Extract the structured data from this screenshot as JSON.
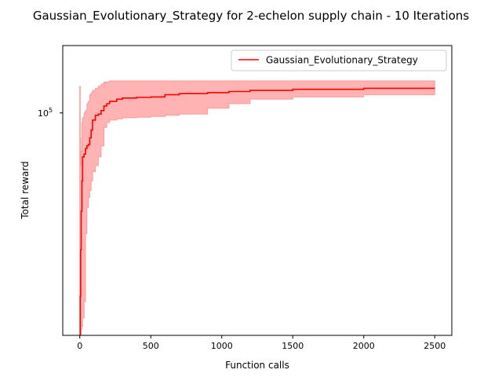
{
  "chart_data": {
    "type": "line",
    "title": "Gaussian_Evolutionary_Strategy for 2-echelon supply chain - 10 Iterations",
    "xlabel": "Function calls",
    "ylabel": "Total reward",
    "xscale": "linear",
    "yscale": "log",
    "xlim": [
      -120,
      2620
    ],
    "ylim": [
      39000,
      133000
    ],
    "x_ticks": [
      0,
      500,
      1000,
      1500,
      2000,
      2500
    ],
    "x_tick_labels": [
      "0",
      "500",
      "1000",
      "1500",
      "2000",
      "2500"
    ],
    "y_ticks": [
      100000
    ],
    "y_tick_labels": [
      "10",
      "5"
    ],
    "grid": false,
    "legend_position": "top-right",
    "colors": {
      "line": "#ff0000",
      "band_fill": "#ffb3b3",
      "band_edge": "#ff9a9a"
    },
    "series": [
      {
        "name": "Gaussian_Evolutionary_Strategy",
        "style": "step",
        "x": [
          0,
          3,
          6,
          10,
          15,
          20,
          30,
          40,
          50,
          60,
          70,
          80,
          90,
          110,
          130,
          150,
          170,
          190,
          210,
          260,
          300,
          400,
          500,
          600,
          700,
          900,
          1050,
          1200,
          1500,
          2000,
          2500
        ],
        "y": [
          39000,
          46000,
          56000,
          66000,
          75000,
          83000,
          84000,
          86000,
          87000,
          87500,
          90000,
          93000,
          97000,
          99000,
          99500,
          101000,
          103000,
          104000,
          105000,
          106000,
          106500,
          106800,
          107000,
          108000,
          108500,
          109000,
          109500,
          110000,
          110500,
          111000,
          111000
        ]
      }
    ],
    "band": {
      "x": [
        0,
        3,
        6,
        10,
        15,
        20,
        30,
        40,
        50,
        60,
        70,
        80,
        90,
        110,
        130,
        150,
        170,
        190,
        210,
        260,
        300,
        400,
        500,
        600,
        700,
        900,
        1050,
        1200,
        1500,
        2000,
        2500
      ],
      "upper": [
        112000,
        90000,
        80000,
        85000,
        96000,
        98000,
        100000,
        101000,
        104000,
        105000,
        108000,
        109000,
        110000,
        111000,
        112000,
        113000,
        114000,
        114000,
        114500,
        114500,
        114500,
        114500,
        114500,
        114500,
        114500,
        114500,
        114500,
        114500,
        114500,
        114500,
        114500
      ],
      "lower": [
        39000,
        39000,
        39000,
        40000,
        40500,
        42000,
        45000,
        60000,
        67000,
        70000,
        72000,
        75000,
        78000,
        80000,
        83000,
        87000,
        94000,
        96000,
        97000,
        97500,
        98000,
        98200,
        98500,
        99000,
        99500,
        102000,
        104000,
        106000,
        107000,
        108000,
        109000
      ]
    }
  }
}
